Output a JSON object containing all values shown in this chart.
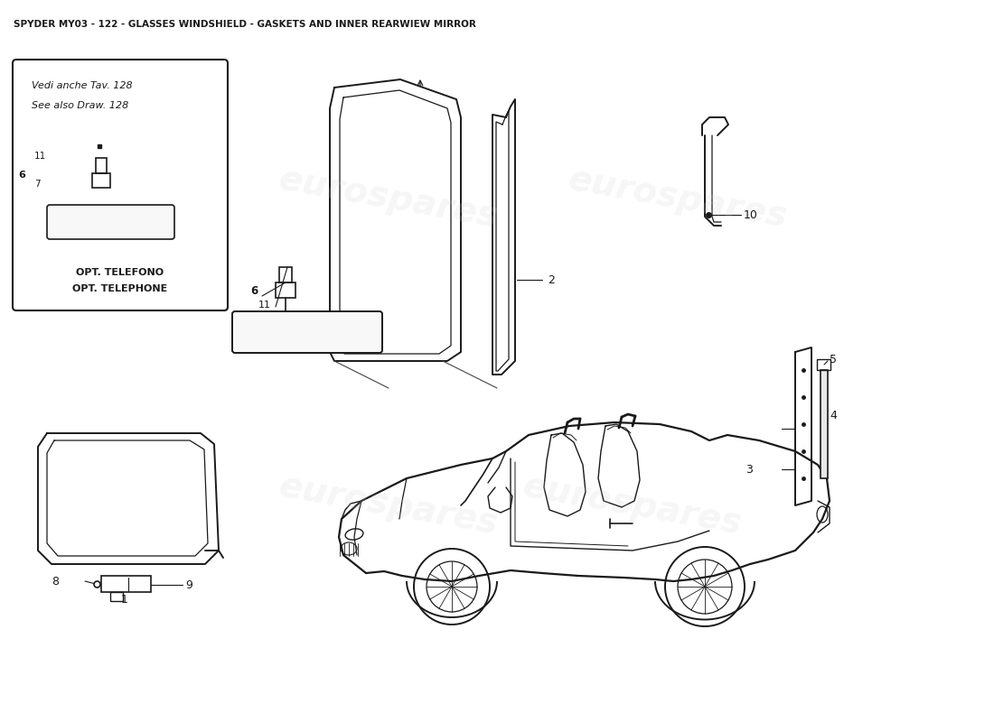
{
  "title": "SPYDER MY03 - 122 - GLASSES WINDSHIELD - GASKETS AND INNER REARWIEW MIRROR",
  "bg": "#ffffff",
  "lc": "#1a1a1a",
  "wm": "#cccccc",
  "wm_text": "eurospares",
  "inset_text1": "Vedi anche Tav. 128",
  "inset_text2": "See also Draw. 128",
  "opt1": "OPT. TELEFONO",
  "opt2": "OPT. TELEPHONE"
}
